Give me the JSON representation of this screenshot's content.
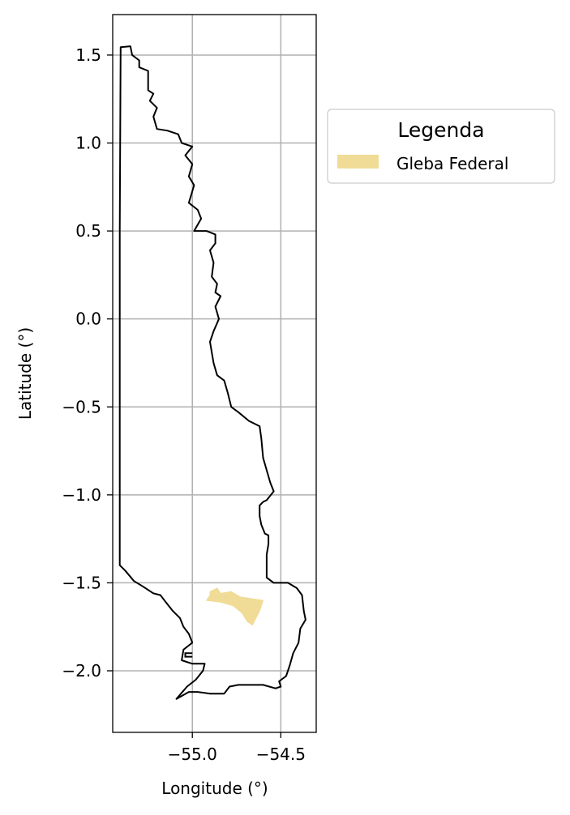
{
  "map": {
    "xlabel": "Longitude (°)",
    "ylabel": "Latitude (°)",
    "xlim": [
      -55.45,
      -54.3
    ],
    "ylim": [
      -2.35,
      1.73
    ],
    "x_ticks": [
      {
        "value": -55.0,
        "label": "−55.0"
      },
      {
        "value": -54.5,
        "label": "−54.5"
      }
    ],
    "y_ticks": [
      {
        "value": 1.5,
        "label": "1.5"
      },
      {
        "value": 1.0,
        "label": "1.0"
      },
      {
        "value": 0.5,
        "label": "0.5"
      },
      {
        "value": 0.0,
        "label": "0.0"
      },
      {
        "value": -0.5,
        "label": "−0.5"
      },
      {
        "value": -1.0,
        "label": "−1.0"
      },
      {
        "value": -1.5,
        "label": "−1.5"
      },
      {
        "value": -2.0,
        "label": "−2.0"
      }
    ],
    "grid": true,
    "colors": {
      "boundary": "#000000",
      "gleba_fill": "#f0dc96",
      "grid": "#b0b0b0"
    },
    "boundary": [
      [
        -55.405,
        1.545
      ],
      [
        -55.35,
        1.55
      ],
      [
        -55.34,
        1.5
      ],
      [
        -55.3,
        1.47
      ],
      [
        -55.3,
        1.43
      ],
      [
        -55.25,
        1.41
      ],
      [
        -55.25,
        1.3
      ],
      [
        -55.22,
        1.28
      ],
      [
        -55.24,
        1.24
      ],
      [
        -55.2,
        1.2
      ],
      [
        -55.22,
        1.15
      ],
      [
        -55.2,
        1.08
      ],
      [
        -55.14,
        1.07
      ],
      [
        -55.08,
        1.05
      ],
      [
        -55.06,
        1.0
      ],
      [
        -55.0,
        0.98
      ],
      [
        -55.04,
        0.93
      ],
      [
        -55.0,
        0.88
      ],
      [
        -55.02,
        0.81
      ],
      [
        -54.99,
        0.76
      ],
      [
        -55.02,
        0.66
      ],
      [
        -54.97,
        0.62
      ],
      [
        -54.95,
        0.57
      ],
      [
        -54.99,
        0.5
      ],
      [
        -54.92,
        0.5
      ],
      [
        -54.87,
        0.48
      ],
      [
        -54.87,
        0.43
      ],
      [
        -54.9,
        0.39
      ],
      [
        -54.88,
        0.32
      ],
      [
        -54.89,
        0.24
      ],
      [
        -54.86,
        0.2
      ],
      [
        -54.87,
        0.15
      ],
      [
        -54.84,
        0.13
      ],
      [
        -54.87,
        0.07
      ],
      [
        -54.85,
        0.0
      ],
      [
        -54.88,
        -0.07
      ],
      [
        -54.9,
        -0.13
      ],
      [
        -54.88,
        -0.25
      ],
      [
        -54.86,
        -0.32
      ],
      [
        -54.82,
        -0.35
      ],
      [
        -54.8,
        -0.42
      ],
      [
        -54.78,
        -0.5
      ],
      [
        -54.74,
        -0.53
      ],
      [
        -54.68,
        -0.58
      ],
      [
        -54.62,
        -0.61
      ],
      [
        -54.61,
        -0.68
      ],
      [
        -54.6,
        -0.79
      ],
      [
        -54.58,
        -0.86
      ],
      [
        -54.56,
        -0.93
      ],
      [
        -54.54,
        -0.98
      ],
      [
        -54.58,
        -1.03
      ],
      [
        -54.6,
        -1.04
      ],
      [
        -54.62,
        -1.06
      ],
      [
        -54.62,
        -1.12
      ],
      [
        -54.61,
        -1.17
      ],
      [
        -54.59,
        -1.22
      ],
      [
        -54.57,
        -1.23
      ],
      [
        -54.57,
        -1.28
      ],
      [
        -54.58,
        -1.34
      ],
      [
        -54.58,
        -1.41
      ],
      [
        -54.58,
        -1.47
      ],
      [
        -54.54,
        -1.5
      ],
      [
        -54.46,
        -1.5
      ],
      [
        -54.41,
        -1.53
      ],
      [
        -54.38,
        -1.57
      ],
      [
        -54.37,
        -1.66
      ],
      [
        -54.36,
        -1.71
      ],
      [
        -54.39,
        -1.76
      ],
      [
        -54.4,
        -1.84
      ],
      [
        -54.43,
        -1.9
      ],
      [
        -54.45,
        -1.97
      ],
      [
        -54.47,
        -2.03
      ],
      [
        -54.51,
        -2.06
      ],
      [
        -54.5,
        -2.09
      ],
      [
        -54.53,
        -2.1
      ],
      [
        -54.6,
        -2.08
      ],
      [
        -54.68,
        -2.08
      ],
      [
        -54.74,
        -2.08
      ],
      [
        -54.79,
        -2.09
      ],
      [
        -54.82,
        -2.13
      ],
      [
        -54.9,
        -2.13
      ],
      [
        -54.97,
        -2.12
      ],
      [
        -55.02,
        -2.12
      ],
      [
        -55.09,
        -2.16
      ],
      [
        -55.03,
        -2.09
      ],
      [
        -54.98,
        -2.05
      ],
      [
        -54.94,
        -2.0
      ],
      [
        -54.93,
        -1.96
      ],
      [
        -55.0,
        -1.96
      ],
      [
        -55.06,
        -1.94
      ],
      [
        -55.05,
        -1.88
      ],
      [
        -55.0,
        -1.84
      ],
      [
        -55.02,
        -1.79
      ],
      [
        -55.05,
        -1.75
      ],
      [
        -55.07,
        -1.7
      ],
      [
        -55.11,
        -1.66
      ],
      [
        -55.15,
        -1.61
      ],
      [
        -55.18,
        -1.57
      ],
      [
        -55.22,
        -1.56
      ],
      [
        -55.28,
        -1.52
      ],
      [
        -55.33,
        -1.49
      ],
      [
        -55.38,
        -1.43
      ],
      [
        -55.41,
        -1.4
      ],
      [
        -55.41,
        -0.5
      ],
      [
        -55.41,
        0.5
      ],
      [
        -55.405,
        1.545
      ]
    ],
    "river_segments": [
      [
        [
          -55.0,
          -1.9
        ],
        [
          -55.04,
          -1.9
        ],
        [
          -55.04,
          -1.92
        ],
        [
          -55.0,
          -1.92
        ]
      ]
    ],
    "gleba_federal": [
      [
        -54.9,
        -1.55
      ],
      [
        -54.86,
        -1.53
      ],
      [
        -54.84,
        -1.56
      ],
      [
        -54.78,
        -1.55
      ],
      [
        -54.73,
        -1.58
      ],
      [
        -54.6,
        -1.6
      ],
      [
        -54.62,
        -1.66
      ],
      [
        -54.64,
        -1.7
      ],
      [
        -54.66,
        -1.74
      ],
      [
        -54.69,
        -1.72
      ],
      [
        -54.72,
        -1.67
      ],
      [
        -54.77,
        -1.63
      ],
      [
        -54.84,
        -1.61
      ],
      [
        -54.92,
        -1.6
      ],
      [
        -54.9,
        -1.57
      ]
    ],
    "legend": {
      "title": "Legenda",
      "entries": [
        {
          "label": "Gleba Federal",
          "color": "#f0dc96"
        }
      ],
      "placement": "outside right, upper"
    }
  }
}
